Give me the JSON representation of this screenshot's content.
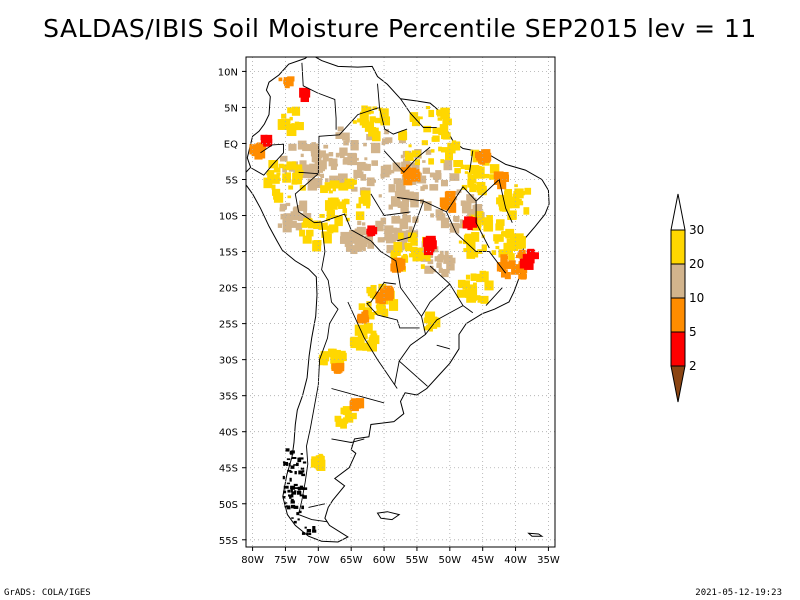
{
  "title": "SALDAS/IBIS Soil Moisture Percentile SEP2015 lev = 11",
  "footer": {
    "left": "GrADS: COLA/IGES",
    "right": "2021-05-12-19:23"
  },
  "map": {
    "lon_range": [
      -81,
      -34
    ],
    "lat_range": [
      -56,
      12
    ],
    "lon_ticks": [
      {
        "v": -80,
        "label": "80W"
      },
      {
        "v": -75,
        "label": "75W"
      },
      {
        "v": -70,
        "label": "70W"
      },
      {
        "v": -65,
        "label": "65W"
      },
      {
        "v": -60,
        "label": "60W"
      },
      {
        "v": -55,
        "label": "55W"
      },
      {
        "v": -50,
        "label": "50W"
      },
      {
        "v": -45,
        "label": "45W"
      },
      {
        "v": -40,
        "label": "40W"
      },
      {
        "v": -35,
        "label": "35W"
      }
    ],
    "lat_ticks": [
      {
        "v": 10,
        "label": "10N"
      },
      {
        "v": 5,
        "label": "5N"
      },
      {
        "v": 0,
        "label": "EQ"
      },
      {
        "v": -5,
        "label": "5S"
      },
      {
        "v": -10,
        "label": "10S"
      },
      {
        "v": -15,
        "label": "15S"
      },
      {
        "v": -20,
        "label": "20S"
      },
      {
        "v": -25,
        "label": "25S"
      },
      {
        "v": -30,
        "label": "30S"
      },
      {
        "v": -35,
        "label": "35S"
      },
      {
        "v": -40,
        "label": "40S"
      },
      {
        "v": -45,
        "label": "45S"
      },
      {
        "v": -50,
        "label": "50S"
      },
      {
        "v": -55,
        "label": "55S"
      }
    ]
  },
  "colorbar": {
    "levels": [
      "2",
      "5",
      "10",
      "20",
      "30"
    ],
    "colors": [
      "#8b4513",
      "#ff0000",
      "#ff8c00",
      "#d2b48c",
      "#ffd700",
      "#ffffff"
    ]
  }
}
